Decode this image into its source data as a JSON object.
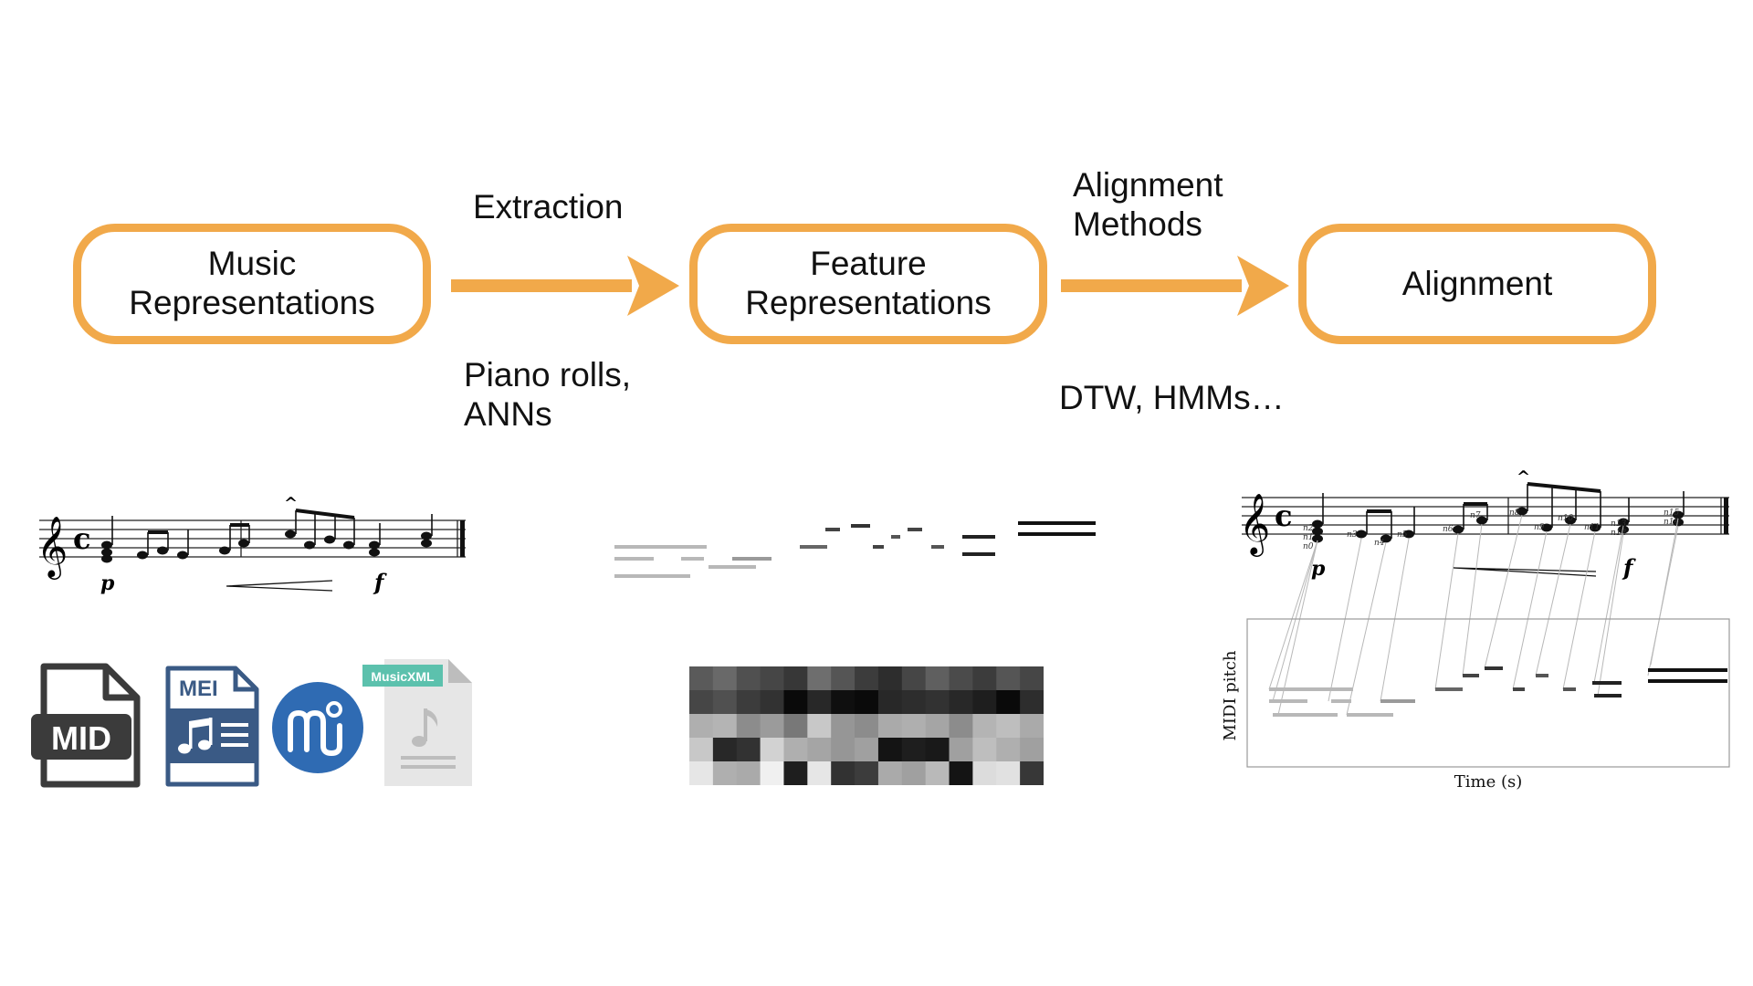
{
  "stages": [
    {
      "lines": [
        "Music",
        "Representations"
      ]
    },
    {
      "lines": [
        "Feature",
        "Representations"
      ]
    },
    {
      "lines": [
        "Alignment"
      ]
    }
  ],
  "arrows": [
    {
      "above": [
        "Extraction"
      ],
      "below": [
        "Piano rolls,",
        "ANNs"
      ]
    },
    {
      "above": [
        "Alignment",
        "Methods"
      ],
      "below": [
        "DTW, HMMs…"
      ]
    }
  ],
  "score": {
    "clef": "𝄞",
    "time": "c",
    "dynamics": [
      "p",
      "f"
    ],
    "accent": "^"
  },
  "formats": [
    {
      "name": "midi-file-icon",
      "label": "MID"
    },
    {
      "name": "mei-file-icon",
      "label": "MEI"
    },
    {
      "name": "musescore-icon",
      "label": "mu"
    },
    {
      "name": "musicxml-file-icon",
      "label": "MusicXML"
    }
  ],
  "aligned_score": {
    "note_labels": [
      "n0",
      "n1",
      "n2",
      "n3",
      "n4",
      "n5",
      "n6",
      "n7",
      "n8",
      "n9",
      "n10",
      "n11",
      "n12",
      "n13",
      "n14",
      "n15"
    ],
    "ylabel": "MIDI pitch",
    "xlabel": "Time (s)"
  },
  "colors": {
    "accent": "#f1a94a",
    "ink": "#111111"
  }
}
